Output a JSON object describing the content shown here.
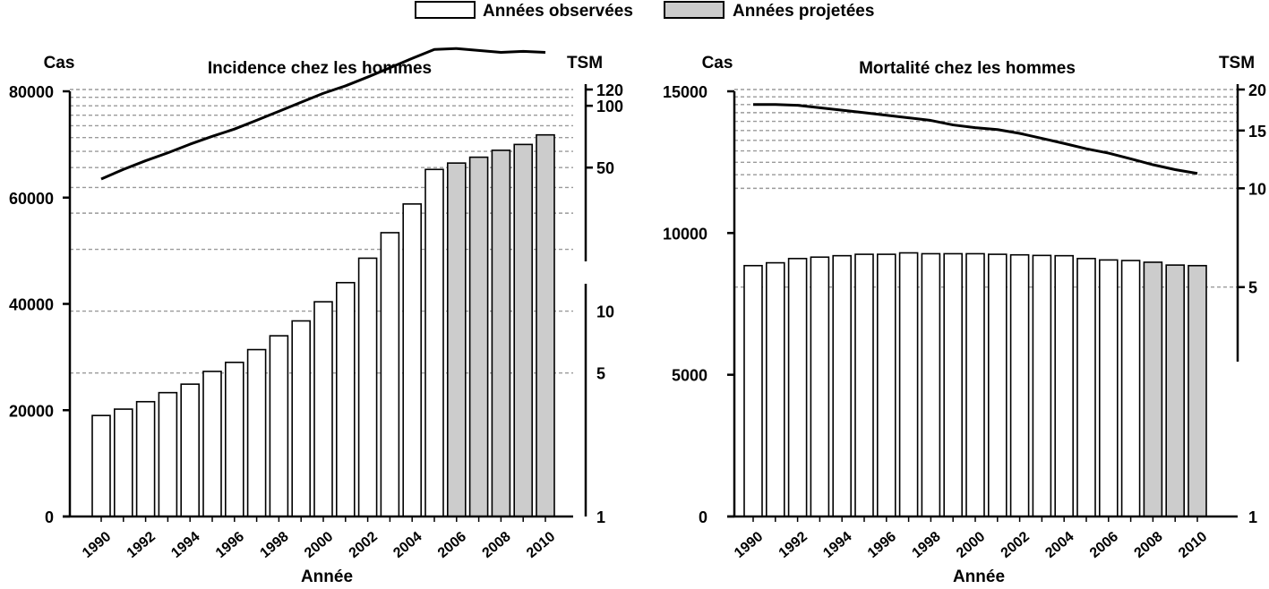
{
  "legend": {
    "items": [
      {
        "label": "Années observées",
        "fill": "#ffffff"
      },
      {
        "label": "Années projetées",
        "fill": "#cccccc"
      }
    ]
  },
  "chart_data": [
    {
      "type": "bar",
      "title": "Incidence chez les hommes",
      "xlabel": "Année",
      "ylabel": "Cas",
      "y2label": "TSM",
      "ylim": [
        0,
        80000
      ],
      "yticks": [
        0,
        20000,
        40000,
        60000,
        80000
      ],
      "y2_scale": "log",
      "y2lim": [
        1,
        120
      ],
      "y2ticks": [
        1,
        5,
        10,
        50,
        100,
        120
      ],
      "y2_gridlines": [
        5,
        10,
        20,
        30,
        40,
        50,
        60,
        70,
        80,
        90,
        100,
        110,
        120
      ],
      "x": [
        1990,
        1991,
        1992,
        1993,
        1994,
        1995,
        1996,
        1997,
        1998,
        1999,
        2000,
        2001,
        2002,
        2003,
        2004,
        2005,
        2006,
        2007,
        2008,
        2009,
        2010
      ],
      "xtick_labels": [
        "1990",
        "1992",
        "1994",
        "1996",
        "1998",
        "2000",
        "2002",
        "2004",
        "2006",
        "2008",
        "2010"
      ],
      "projected_from": 2006,
      "bars": [
        19000,
        20200,
        21600,
        23300,
        24900,
        27300,
        29000,
        31400,
        34000,
        36800,
        40400,
        44000,
        48600,
        53400,
        58800,
        65300,
        66500,
        67600,
        68900,
        70000,
        71800
      ],
      "line": [
        44,
        49,
        54,
        59,
        65,
        71,
        77,
        85,
        94,
        104,
        115,
        125,
        138,
        153,
        170,
        188,
        190,
        186,
        182,
        184,
        182
      ]
    },
    {
      "type": "bar",
      "title": "Mortalité chez les hommes",
      "xlabel": "Année",
      "ylabel": "Cas",
      "y2label": "TSM",
      "ylim": [
        0,
        15000
      ],
      "yticks": [
        0,
        5000,
        10000,
        15000
      ],
      "y2_scale": "log",
      "y2lim": [
        1,
        20
      ],
      "y2ticks": [
        1,
        5,
        10,
        15,
        20
      ],
      "y2_gridlines": [
        5,
        10,
        11,
        12,
        13,
        14,
        15,
        16,
        17,
        18,
        19,
        20
      ],
      "x": [
        1990,
        1991,
        1992,
        1993,
        1994,
        1995,
        1996,
        1997,
        1998,
        1999,
        2000,
        2001,
        2002,
        2003,
        2004,
        2005,
        2006,
        2007,
        2008,
        2009,
        2010
      ],
      "xtick_labels": [
        "1990",
        "1992",
        "1994",
        "1996",
        "1998",
        "2000",
        "2002",
        "2004",
        "2006",
        "2008",
        "2010"
      ],
      "projected_from": 2008,
      "bars": [
        8850,
        8950,
        9100,
        9150,
        9200,
        9250,
        9250,
        9300,
        9270,
        9270,
        9270,
        9250,
        9230,
        9210,
        9200,
        9100,
        9050,
        9030,
        8970,
        8870,
        8850
      ],
      "line": [
        18.0,
        18.0,
        17.9,
        17.6,
        17.3,
        17.0,
        16.7,
        16.4,
        16.1,
        15.6,
        15.3,
        15.1,
        14.7,
        14.2,
        13.7,
        13.2,
        12.8,
        12.3,
        11.8,
        11.4,
        11.1
      ]
    }
  ]
}
